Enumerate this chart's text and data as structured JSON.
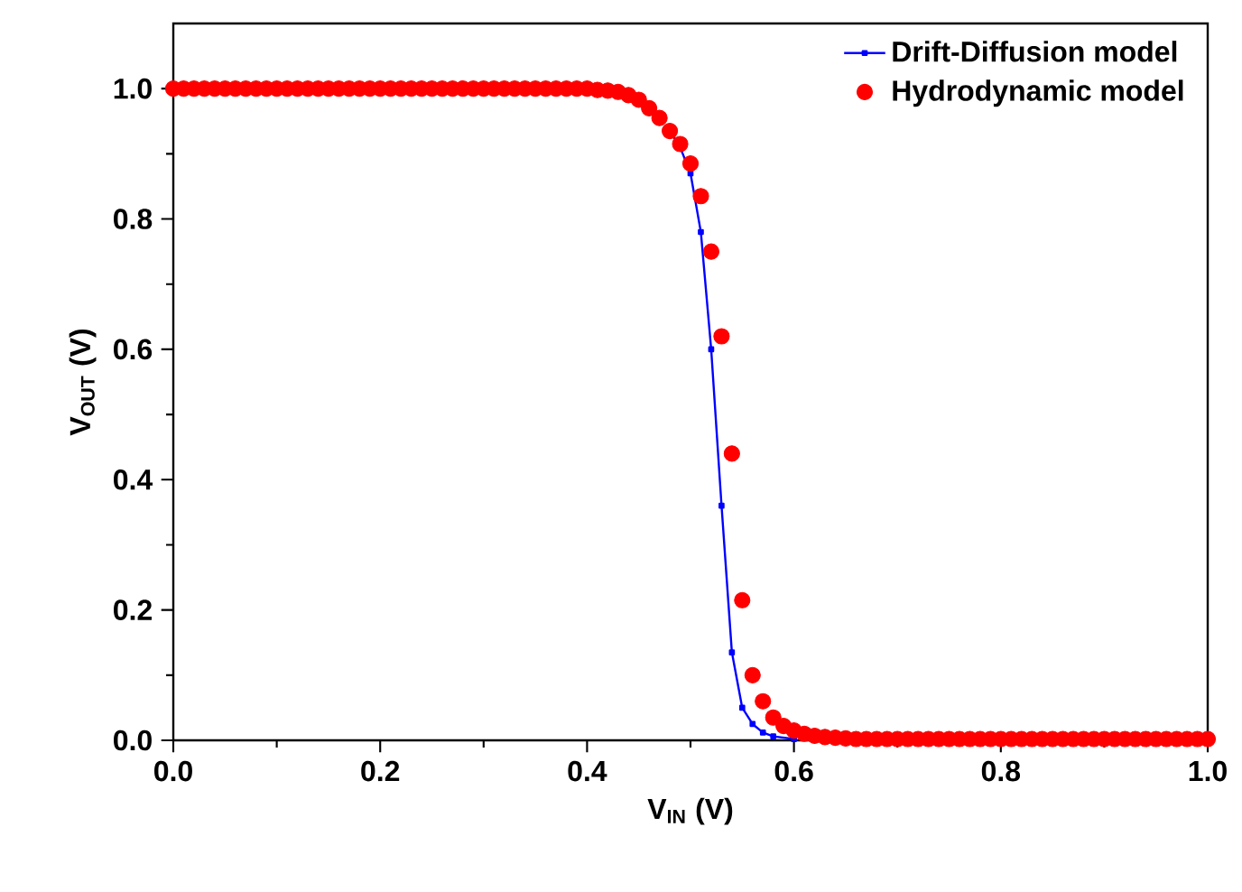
{
  "chart_data": {
    "type": "line",
    "xlabel": "V$_{IN}$ (V)",
    "ylabel": "V$_{OUT}$ (V)",
    "xlim": [
      0,
      1
    ],
    "ylim": [
      0,
      1.1
    ],
    "xticks": [
      {
        "value": 0,
        "label": "0.0"
      },
      {
        "value": 0.2,
        "label": "0.2"
      },
      {
        "value": 0.4,
        "label": "0.4"
      },
      {
        "value": 0.6,
        "label": "0.6"
      },
      {
        "value": 0.8,
        "label": "0.8"
      },
      {
        "value": 1,
        "label": "1.0"
      }
    ],
    "yticks": [
      {
        "value": 0,
        "label": "0.0"
      },
      {
        "value": 0.2,
        "label": "0.2"
      },
      {
        "value": 0.4,
        "label": "0.4"
      },
      {
        "value": 0.6,
        "label": "0.6"
      },
      {
        "value": 0.8,
        "label": "0.8"
      },
      {
        "value": 1,
        "label": "1.0"
      }
    ],
    "grid": false,
    "legend": "top right",
    "series": [
      {
        "name": "Drift-Diffusion model",
        "color": "#0000ff",
        "marker": "square",
        "line_style": "solid",
        "x": [
          0.48,
          0.49,
          0.5,
          0.51,
          0.52,
          0.53,
          0.54,
          0.55,
          0.56,
          0.57,
          0.58,
          0.6
        ],
        "values": [
          0.935,
          0.91,
          0.87,
          0.78,
          0.6,
          0.36,
          0.135,
          0.05,
          0.025,
          0.012,
          0.006,
          0.002
        ]
      },
      {
        "name": "Hydrodynamic model",
        "type": "scatter",
        "color": "#ff0000",
        "marker": "circle",
        "x": [
          0,
          0.01,
          0.02,
          0.03,
          0.04,
          0.05,
          0.06,
          0.07,
          0.08,
          0.09,
          0.1,
          0.11,
          0.12,
          0.13,
          0.14,
          0.15,
          0.16,
          0.17,
          0.18,
          0.19,
          0.2,
          0.21,
          0.22,
          0.23,
          0.24,
          0.25,
          0.26,
          0.27,
          0.28,
          0.29,
          0.3,
          0.31,
          0.32,
          0.33,
          0.34,
          0.35,
          0.36,
          0.37,
          0.38,
          0.39,
          0.4,
          0.41,
          0.42,
          0.43,
          0.44,
          0.45,
          0.46,
          0.47,
          0.48,
          0.49,
          0.5,
          0.51,
          0.52,
          0.53,
          0.54,
          0.55,
          0.56,
          0.57,
          0.58,
          0.59,
          0.6,
          0.61,
          0.62,
          0.63,
          0.64,
          0.65,
          0.66,
          0.67,
          0.68,
          0.69,
          0.7,
          0.71,
          0.72,
          0.73,
          0.74,
          0.75,
          0.76,
          0.77,
          0.78,
          0.79,
          0.8,
          0.81,
          0.82,
          0.83,
          0.84,
          0.85,
          0.86,
          0.87,
          0.88,
          0.89,
          0.9,
          0.91,
          0.92,
          0.93,
          0.94,
          0.95,
          0.96,
          0.97,
          0.98,
          0.99,
          1.0
        ],
        "values": [
          1,
          1,
          1,
          1,
          1,
          1,
          1,
          1,
          1,
          1,
          1,
          1,
          1,
          1,
          1,
          1,
          1,
          1,
          1,
          1,
          1,
          1,
          1,
          1,
          1,
          1,
          1,
          1,
          1,
          1,
          1,
          1,
          1,
          1,
          1,
          1,
          1,
          1,
          1,
          1,
          1,
          0.998,
          0.997,
          0.995,
          0.99,
          0.983,
          0.97,
          0.955,
          0.935,
          0.915,
          0.885,
          0.835,
          0.75,
          0.62,
          0.44,
          0.215,
          0.1,
          0.06,
          0.035,
          0.022,
          0.015,
          0.01,
          0.007,
          0.005,
          0.004,
          0.003,
          0.002,
          0.002,
          0.002,
          0.002,
          0.002,
          0.002,
          0.002,
          0.002,
          0.002,
          0.002,
          0.002,
          0.002,
          0.002,
          0.002,
          0.002,
          0.002,
          0.002,
          0.002,
          0.002,
          0.002,
          0.002,
          0.002,
          0.002,
          0.002,
          0.002,
          0.002,
          0.002,
          0.002,
          0.002,
          0.002,
          0.002,
          0.002,
          0.002,
          0.002,
          0.002
        ]
      }
    ]
  }
}
